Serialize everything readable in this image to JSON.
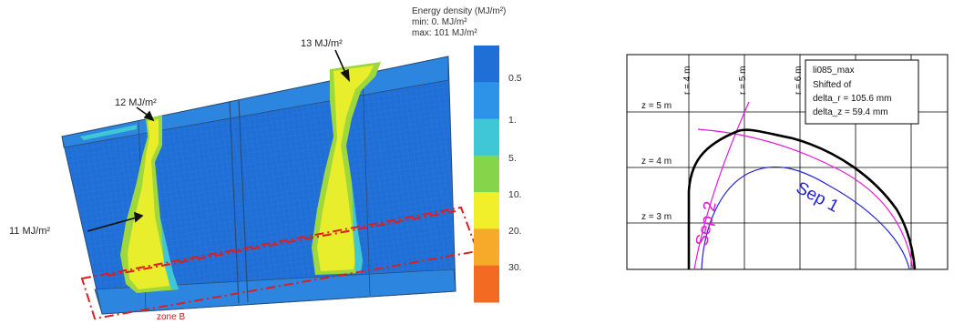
{
  "heatmap": {
    "colorbar": {
      "title_lines": [
        "Energy density (MJ/m²)",
        "min: 0. MJ/m²",
        "max: 101 MJ/m²"
      ],
      "tick_labels": [
        "0.5",
        "1.",
        "5.",
        "10.",
        "20.",
        "30."
      ],
      "colors": [
        "#1f6fd6",
        "#2d93e8",
        "#3fc7d6",
        "#86d44a",
        "#f1ee2a",
        "#f7a92a",
        "#f36a22"
      ]
    },
    "annotations": {
      "left_top": "12 MJ/m²",
      "right_top": "13 MJ/m²",
      "left_mid": "11 MJ/m²"
    },
    "zone_label": "zone B",
    "colors": {
      "panel": "#1f6fd6",
      "hot": "#e8ee2c",
      "warm": "#9fd83d",
      "zone": "#e01c1c"
    }
  },
  "plot": {
    "r_labels": [
      "r = 4 m",
      "r = 5 m",
      "r = 6 m"
    ],
    "z_labels": [
      "z = 5 m",
      "z = 4 m",
      "z = 3 m"
    ],
    "legend": {
      "title": "li085_max",
      "line2": "Shifted of",
      "line3": "delta_r = 105.6 mm",
      "line4": "delta_z =  59.4 mm"
    },
    "sep2_label": "Sep 2",
    "sep1_label": "Sep 1",
    "colors": {
      "sep2": "#e21ad8",
      "sep1": "#2222d8",
      "black": "#000000"
    }
  }
}
